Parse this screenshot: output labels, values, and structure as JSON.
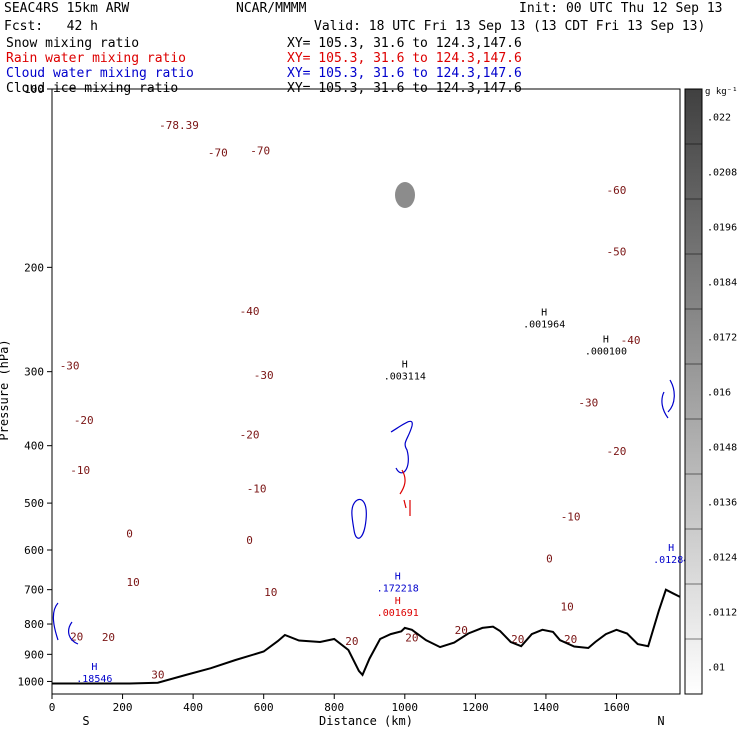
{
  "header": {
    "model": "SEAC4RS 15km ARW",
    "org": "NCAR/MMMM",
    "init": "Init: 00 UTC Thu 12 Sep 13",
    "fcst": "Fcst:   42 h",
    "valid": "Valid: 18 UTC Fri 13 Sep 13 (13 CDT Fri 13 Sep 13)",
    "fields": [
      {
        "label": "Snow mixing ratio",
        "xy": "XY= 105.3, 31.6 to 124.3,147.6",
        "color": "#000000"
      },
      {
        "label": "Rain water mixing ratio",
        "xy": "XY= 105.3, 31.6 to 124.3,147.6",
        "color": "#dd0000"
      },
      {
        "label": "Cloud water mixing ratio",
        "xy": "XY= 105.3, 31.6 to 124.3,147.6",
        "color": "#0000cc"
      },
      {
        "label": "Cloud ice mixing ratio",
        "xy": "XY= 105.3, 31.6 to 124.3,147.6",
        "color": "#000000"
      }
    ]
  },
  "chart_data": {
    "type": "line",
    "xlabel": "Distance (km)",
    "ylabel": "Pressure (hPa)",
    "xlim": [
      0,
      1780
    ],
    "ylim": [
      1050,
      100
    ],
    "y_scale": "log",
    "x_ticks": [
      0,
      200,
      400,
      600,
      800,
      1000,
      1200,
      1400,
      1600
    ],
    "y_ticks": [
      200,
      300,
      400,
      500,
      600,
      700,
      800,
      900,
      1000
    ],
    "top_axis_label": "100",
    "x_end_labels": {
      "left": "S",
      "right": "N"
    },
    "temperature_contours": {
      "color": "#7a1414",
      "levels": [
        -78,
        -70,
        -60,
        -50,
        -40,
        -30,
        -20,
        -10,
        0,
        10,
        20,
        30
      ],
      "labels": [
        {
          "text": "-78.39",
          "x": 360,
          "p": 115
        },
        {
          "text": "-70",
          "x": 470,
          "p": 128
        },
        {
          "text": "-70",
          "x": 590,
          "p": 127
        },
        {
          "text": "-60",
          "x": 1600,
          "p": 148
        },
        {
          "text": "-50",
          "x": 1600,
          "p": 188
        },
        {
          "text": "-40",
          "x": 560,
          "p": 237
        },
        {
          "text": "-40",
          "x": 1640,
          "p": 265
        },
        {
          "text": "-30",
          "x": 50,
          "p": 293
        },
        {
          "text": "-30",
          "x": 600,
          "p": 304
        },
        {
          "text": "-30",
          "x": 1520,
          "p": 338
        },
        {
          "text": "-20",
          "x": 90,
          "p": 362
        },
        {
          "text": "-20",
          "x": 560,
          "p": 383
        },
        {
          "text": "-20",
          "x": 1600,
          "p": 408
        },
        {
          "text": "-10",
          "x": 80,
          "p": 440
        },
        {
          "text": "-10",
          "x": 580,
          "p": 472
        },
        {
          "text": "-10",
          "x": 1470,
          "p": 527
        },
        {
          "text": "0",
          "x": 220,
          "p": 563
        },
        {
          "text": "0",
          "x": 560,
          "p": 577
        },
        {
          "text": "0",
          "x": 1410,
          "p": 620
        },
        {
          "text": "10",
          "x": 230,
          "p": 680
        },
        {
          "text": "10",
          "x": 620,
          "p": 707
        },
        {
          "text": "10",
          "x": 1460,
          "p": 748
        },
        {
          "text": "20",
          "x": 70,
          "p": 839
        },
        {
          "text": "20",
          "x": 160,
          "p": 841
        },
        {
          "text": "20",
          "x": 850,
          "p": 855
        },
        {
          "text": "20",
          "x": 1020,
          "p": 843
        },
        {
          "text": "20",
          "x": 1160,
          "p": 818
        },
        {
          "text": "20",
          "x": 1320,
          "p": 848
        },
        {
          "text": "20",
          "x": 1470,
          "p": 848
        },
        {
          "text": "30",
          "x": 300,
          "p": 973
        }
      ]
    },
    "terrain": {
      "color": "#000000",
      "x": [
        0,
        100,
        220,
        300,
        380,
        450,
        520,
        600,
        640,
        660,
        700,
        760,
        800,
        840,
        870,
        880,
        900,
        930,
        960,
        990,
        1000,
        1020,
        1060,
        1100,
        1140,
        1180,
        1220,
        1250,
        1270,
        1300,
        1330,
        1360,
        1390,
        1420,
        1440,
        1480,
        1520,
        1540,
        1570,
        1600,
        1630,
        1660,
        1690,
        1720,
        1740,
        1760,
        1780
      ],
      "p": [
        1008,
        1008,
        1008,
        1005,
        975,
        950,
        920,
        890,
        855,
        835,
        853,
        858,
        848,
        885,
        960,
        975,
        915,
        848,
        832,
        823,
        812,
        818,
        852,
        875,
        860,
        830,
        812,
        808,
        822,
        858,
        872,
        832,
        818,
        825,
        852,
        873,
        878,
        858,
        832,
        818,
        830,
        865,
        872,
        760,
        700,
        710,
        720
      ]
    },
    "max_markers": [
      {
        "label": "H",
        "value": ".001964",
        "field": "snow",
        "x": 1395,
        "p": 245
      },
      {
        "label": "H",
        "value": ".000100",
        "field": "snow",
        "x": 1570,
        "p": 272
      },
      {
        "label": "H",
        "value": ".003114",
        "field": "cloud_ice",
        "x": 1000,
        "p": 300
      },
      {
        "label": "H",
        "value": ".01284",
        "field": "cloud_water",
        "x": 1755,
        "p": 612
      },
      {
        "label": "H",
        "value": ".172218",
        "field": "cloud_water",
        "x": 980,
        "p": 684
      },
      {
        "label": "H",
        "value": ".001691",
        "field": "rain",
        "x": 980,
        "p": 752
      },
      {
        "label": "H",
        "value": ".18546",
        "field": "cloud_water",
        "x": 120,
        "p": 972
      }
    ],
    "colorbar": {
      "unit": "g kg⁻¹",
      "ticks": [
        ".022",
        ".0208",
        ".0196",
        ".0184",
        ".0172",
        ".016",
        ".0148",
        ".0136",
        ".0124",
        ".0112",
        ".01"
      ],
      "color_top": "#404040",
      "color_bottom": "#ffffff"
    }
  }
}
